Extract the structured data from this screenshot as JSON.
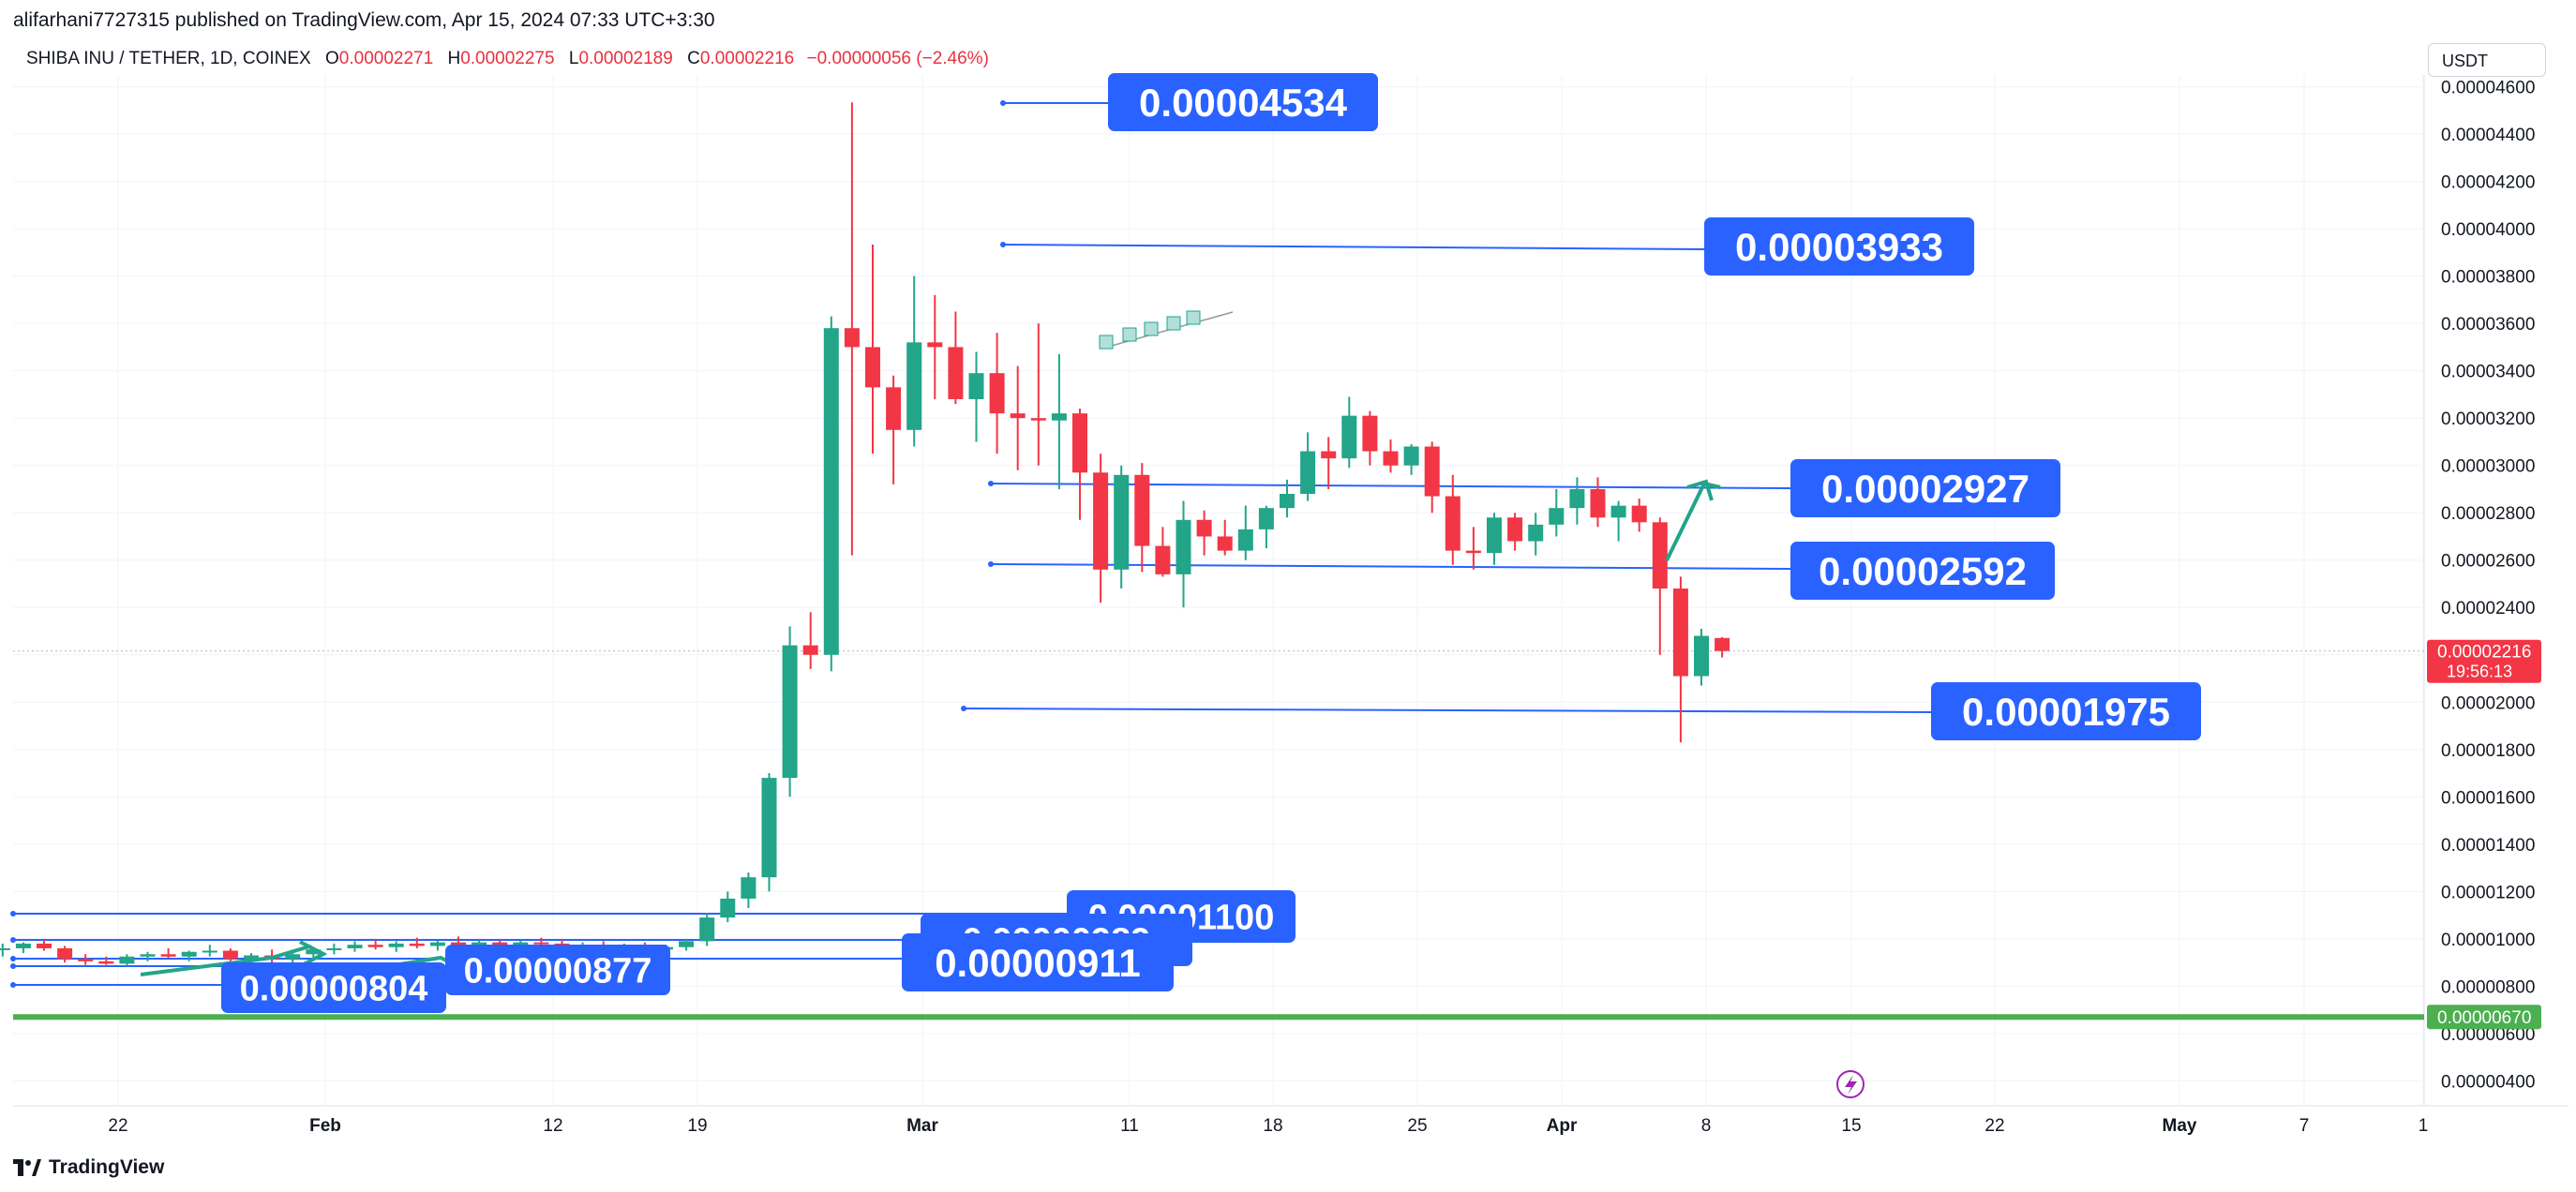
{
  "header": {
    "published_by": "alifarhani7727315 published on TradingView.com, Apr 15, 2024 07:33 UTC+3:30"
  },
  "symbol": {
    "name": "SHIBA INU / TETHER, 1D, COINEX",
    "o_label": "O",
    "o_value": "0.00002271",
    "h_label": "H",
    "h_value": "0.00002275",
    "l_label": "L",
    "l_value": "0.00002189",
    "c_label": "C",
    "c_value": "0.00002216",
    "change": "−0.00000056 (−2.46%)"
  },
  "currency": "USDT",
  "footer": {
    "brand": "TradingView"
  },
  "colors": {
    "up": "#22a589",
    "down": "#f23645",
    "line": "#2962ff",
    "label_bg": "#2962ff",
    "support": "#4caf50"
  },
  "chart_data": {
    "type": "candlestick",
    "y_range": [
      3.7e-06,
      4.7e-06
    ],
    "y_ticks": [
      "0.00000400",
      "0.00000600",
      "0.00000800",
      "0.00001000",
      "0.00001200",
      "0.00001400",
      "0.00001600",
      "0.00001800",
      "0.00002000",
      "0.00002200",
      "0.00002400",
      "0.00002600",
      "0.00002800",
      "0.00003000",
      "0.00003200",
      "0.00003400",
      "0.00003600",
      "0.00003800",
      "0.00004000",
      "0.00004200",
      "0.00004400",
      "0.00004600"
    ],
    "x_ticks": [
      "22",
      "Feb",
      "12",
      "19",
      "Mar",
      "11",
      "18",
      "25",
      "Apr",
      "8",
      "15",
      "22",
      "May",
      "7",
      "1"
    ],
    "last_price": {
      "value": "0.00002216",
      "countdown": "19:56:13"
    },
    "support_line": {
      "value": "0.00000670"
    },
    "levels": [
      {
        "label": "0.00004534"
      },
      {
        "label": "0.00003933"
      },
      {
        "label": "0.00002927"
      },
      {
        "label": "0.00002592"
      },
      {
        "label": "0.00001975"
      },
      {
        "label": "0.00001100"
      },
      {
        "label": "0.00000989"
      },
      {
        "label": "0.00000911"
      },
      {
        "label": "0.00000877"
      },
      {
        "label": "0.00000804"
      }
    ],
    "candles": [
      {
        "o": 9.75e-06,
        "h": 1e-05,
        "l": 9.4e-06,
        "c": 9.5e-06
      },
      {
        "o": 9.55e-06,
        "h": 9.8e-06,
        "l": 9.25e-06,
        "c": 9.6e-06
      },
      {
        "o": 9.6e-06,
        "h": 9.85e-06,
        "l": 9.4e-06,
        "c": 9.8e-06
      },
      {
        "o": 9.8e-06,
        "h": 1e-05,
        "l": 9.5e-06,
        "c": 9.6e-06
      },
      {
        "o": 9.6e-06,
        "h": 9.7e-06,
        "l": 9e-06,
        "c": 9.15e-06
      },
      {
        "o": 9.15e-06,
        "h": 9.35e-06,
        "l": 8.9e-06,
        "c": 9.05e-06
      },
      {
        "o": 9.05e-06,
        "h": 9.25e-06,
        "l": 8.9e-06,
        "c": 8.95e-06
      },
      {
        "o": 8.95e-06,
        "h": 9.35e-06,
        "l": 8.85e-06,
        "c": 9.25e-06
      },
      {
        "o": 9.25e-06,
        "h": 9.45e-06,
        "l": 9.05e-06,
        "c": 9.35e-06
      },
      {
        "o": 9.35e-06,
        "h": 9.6e-06,
        "l": 9.2e-06,
        "c": 9.25e-06
      },
      {
        "o": 9.25e-06,
        "h": 9.5e-06,
        "l": 9.05e-06,
        "c": 9.45e-06
      },
      {
        "o": 9.45e-06,
        "h": 9.75e-06,
        "l": 9.25e-06,
        "c": 9.5e-06
      },
      {
        "o": 9.5e-06,
        "h": 9.6e-06,
        "l": 9.05e-06,
        "c": 9.15e-06
      },
      {
        "o": 9.15e-06,
        "h": 9.4e-06,
        "l": 8.95e-06,
        "c": 9.3e-06
      },
      {
        "o": 9.3e-06,
        "h": 9.55e-06,
        "l": 9e-06,
        "c": 9.15e-06
      },
      {
        "o": 9.15e-06,
        "h": 9.4e-06,
        "l": 8.95e-06,
        "c": 9.35e-06
      },
      {
        "o": 9.35e-06,
        "h": 9.65e-06,
        "l": 9.15e-06,
        "c": 9.55e-06
      },
      {
        "o": 9.55e-06,
        "h": 9.8e-06,
        "l": 9.35e-06,
        "c": 9.6e-06
      },
      {
        "o": 9.6e-06,
        "h": 9.9e-06,
        "l": 9.45e-06,
        "c": 9.75e-06
      },
      {
        "o": 9.75e-06,
        "h": 1e-05,
        "l": 9.55e-06,
        "c": 9.65e-06
      },
      {
        "o": 9.65e-06,
        "h": 9.9e-06,
        "l": 9.45e-06,
        "c": 9.8e-06
      },
      {
        "o": 9.8e-06,
        "h": 1.005e-05,
        "l": 9.6e-06,
        "c": 9.7e-06
      },
      {
        "o": 9.7e-06,
        "h": 9.95e-06,
        "l": 9.5e-06,
        "c": 9.85e-06
      },
      {
        "o": 9.85e-06,
        "h": 1.01e-05,
        "l": 9.65e-06,
        "c": 9.75e-06
      },
      {
        "o": 9.75e-06,
        "h": 9.95e-06,
        "l": 9.5e-06,
        "c": 9.85e-06
      },
      {
        "o": 9.85e-06,
        "h": 1e-05,
        "l": 9.6e-06,
        "c": 9.75e-06
      },
      {
        "o": 9.75e-06,
        "h": 9.95e-06,
        "l": 9.55e-06,
        "c": 9.85e-06
      },
      {
        "o": 9.85e-06,
        "h": 1.005e-05,
        "l": 9.65e-06,
        "c": 9.8e-06
      },
      {
        "o": 9.8e-06,
        "h": 1e-05,
        "l": 9.55e-06,
        "c": 9.6e-06
      },
      {
        "o": 9.6e-06,
        "h": 9.85e-06,
        "l": 9.45e-06,
        "c": 9.75e-06
      },
      {
        "o": 9.75e-06,
        "h": 9.9e-06,
        "l": 9.5e-06,
        "c": 9.6e-06
      },
      {
        "o": 9.6e-06,
        "h": 9.8e-06,
        "l": 9.45e-06,
        "c": 9.7e-06
      },
      {
        "o": 9.7e-06,
        "h": 9.85e-06,
        "l": 9.5e-06,
        "c": 9.55e-06
      },
      {
        "o": 9.55e-06,
        "h": 9.75e-06,
        "l": 9.4e-06,
        "c": 9.65e-06
      },
      {
        "o": 9.65e-06,
        "h": 1e-05,
        "l": 9.5e-06,
        "c": 9.9e-06
      },
      {
        "o": 9.9e-06,
        "h": 1.11e-05,
        "l": 9.7e-06,
        "c": 1.09e-05
      },
      {
        "o": 1.09e-05,
        "h": 1.2e-05,
        "l": 1.07e-05,
        "c": 1.17e-05
      },
      {
        "o": 1.17e-05,
        "h": 1.28e-05,
        "l": 1.13e-05,
        "c": 1.26e-05
      },
      {
        "o": 1.26e-05,
        "h": 1.7e-05,
        "l": 1.2e-05,
        "c": 1.68e-05
      },
      {
        "o": 1.68e-05,
        "h": 2.32e-05,
        "l": 1.6e-05,
        "c": 2.24e-05
      },
      {
        "o": 2.24e-05,
        "h": 2.38e-05,
        "l": 2.14e-05,
        "c": 2.2e-05
      },
      {
        "o": 2.2e-05,
        "h": 3.63e-05,
        "l": 2.13e-05,
        "c": 3.58e-05
      },
      {
        "o": 3.58e-05,
        "h": 4.534e-05,
        "l": 2.62e-05,
        "c": 3.5e-05
      },
      {
        "o": 3.5e-05,
        "h": 3.933e-05,
        "l": 3.05e-05,
        "c": 3.33e-05
      },
      {
        "o": 3.33e-05,
        "h": 3.38e-05,
        "l": 2.92e-05,
        "c": 3.15e-05
      },
      {
        "o": 3.15e-05,
        "h": 3.8e-05,
        "l": 3.08e-05,
        "c": 3.52e-05
      },
      {
        "o": 3.52e-05,
        "h": 3.72e-05,
        "l": 3.28e-05,
        "c": 3.5e-05
      },
      {
        "o": 3.5e-05,
        "h": 3.65e-05,
        "l": 3.26e-05,
        "c": 3.28e-05
      },
      {
        "o": 3.28e-05,
        "h": 3.48e-05,
        "l": 3.1e-05,
        "c": 3.39e-05
      },
      {
        "o": 3.39e-05,
        "h": 3.56e-05,
        "l": 3.05e-05,
        "c": 3.22e-05
      },
      {
        "o": 3.22e-05,
        "h": 3.42e-05,
        "l": 2.98e-05,
        "c": 3.2e-05
      },
      {
        "o": 3.2e-05,
        "h": 3.6e-05,
        "l": 3e-05,
        "c": 3.19e-05
      },
      {
        "o": 3.19e-05,
        "h": 3.47e-05,
        "l": 2.9e-05,
        "c": 3.22e-05
      },
      {
        "o": 3.22e-05,
        "h": 3.24e-05,
        "l": 2.77e-05,
        "c": 2.97e-05
      },
      {
        "o": 2.97e-05,
        "h": 3.05e-05,
        "l": 2.42e-05,
        "c": 2.56e-05
      },
      {
        "o": 2.56e-05,
        "h": 3e-05,
        "l": 2.48e-05,
        "c": 2.96e-05
      },
      {
        "o": 2.96e-05,
        "h": 3.01e-05,
        "l": 2.55e-05,
        "c": 2.66e-05
      },
      {
        "o": 2.66e-05,
        "h": 2.74e-05,
        "l": 2.53e-05,
        "c": 2.54e-05
      },
      {
        "o": 2.54e-05,
        "h": 2.85e-05,
        "l": 2.4e-05,
        "c": 2.77e-05
      },
      {
        "o": 2.77e-05,
        "h": 2.81e-05,
        "l": 2.62e-05,
        "c": 2.7e-05
      },
      {
        "o": 2.7e-05,
        "h": 2.77e-05,
        "l": 2.62e-05,
        "c": 2.64e-05
      },
      {
        "o": 2.64e-05,
        "h": 2.83e-05,
        "l": 2.6e-05,
        "c": 2.73e-05
      },
      {
        "o": 2.73e-05,
        "h": 2.83e-05,
        "l": 2.65e-05,
        "c": 2.82e-05
      },
      {
        "o": 2.82e-05,
        "h": 2.94e-05,
        "l": 2.78e-05,
        "c": 2.88e-05
      },
      {
        "o": 2.88e-05,
        "h": 3.14e-05,
        "l": 2.85e-05,
        "c": 3.06e-05
      },
      {
        "o": 3.06e-05,
        "h": 3.12e-05,
        "l": 2.9e-05,
        "c": 3.03e-05
      },
      {
        "o": 3.03e-05,
        "h": 3.29e-05,
        "l": 2.99e-05,
        "c": 3.21e-05
      },
      {
        "o": 3.21e-05,
        "h": 3.23e-05,
        "l": 3e-05,
        "c": 3.06e-05
      },
      {
        "o": 3.06e-05,
        "h": 3.11e-05,
        "l": 2.97e-05,
        "c": 3e-05
      },
      {
        "o": 3e-05,
        "h": 3.09e-05,
        "l": 2.96e-05,
        "c": 3.08e-05
      },
      {
        "o": 3.08e-05,
        "h": 3.1e-05,
        "l": 2.8e-05,
        "c": 2.87e-05
      },
      {
        "o": 2.87e-05,
        "h": 2.96e-05,
        "l": 2.58e-05,
        "c": 2.64e-05
      },
      {
        "o": 2.64e-05,
        "h": 2.74e-05,
        "l": 2.56e-05,
        "c": 2.63e-05
      },
      {
        "o": 2.63e-05,
        "h": 2.8e-05,
        "l": 2.58e-05,
        "c": 2.78e-05
      },
      {
        "o": 2.78e-05,
        "h": 2.8e-05,
        "l": 2.64e-05,
        "c": 2.68e-05
      },
      {
        "o": 2.68e-05,
        "h": 2.8e-05,
        "l": 2.62e-05,
        "c": 2.75e-05
      },
      {
        "o": 2.75e-05,
        "h": 2.9e-05,
        "l": 2.7e-05,
        "c": 2.82e-05
      },
      {
        "o": 2.82e-05,
        "h": 2.95e-05,
        "l": 2.75e-05,
        "c": 2.9e-05
      },
      {
        "o": 2.9e-05,
        "h": 2.95e-05,
        "l": 2.74e-05,
        "c": 2.78e-05
      },
      {
        "o": 2.78e-05,
        "h": 2.85e-05,
        "l": 2.68e-05,
        "c": 2.83e-05
      },
      {
        "o": 2.83e-05,
        "h": 2.86e-05,
        "l": 2.72e-05,
        "c": 2.76e-05
      },
      {
        "o": 2.76e-05,
        "h": 2.78e-05,
        "l": 2.2e-05,
        "c": 2.48e-05
      },
      {
        "o": 2.48e-05,
        "h": 2.53e-05,
        "l": 1.83e-05,
        "c": 2.11e-05
      },
      {
        "o": 2.11e-05,
        "h": 2.31e-05,
        "l": 2.07e-05,
        "c": 2.28e-05
      },
      {
        "o": 2.271e-05,
        "h": 2.275e-05,
        "l": 2.189e-05,
        "c": 2.216e-05
      }
    ]
  }
}
